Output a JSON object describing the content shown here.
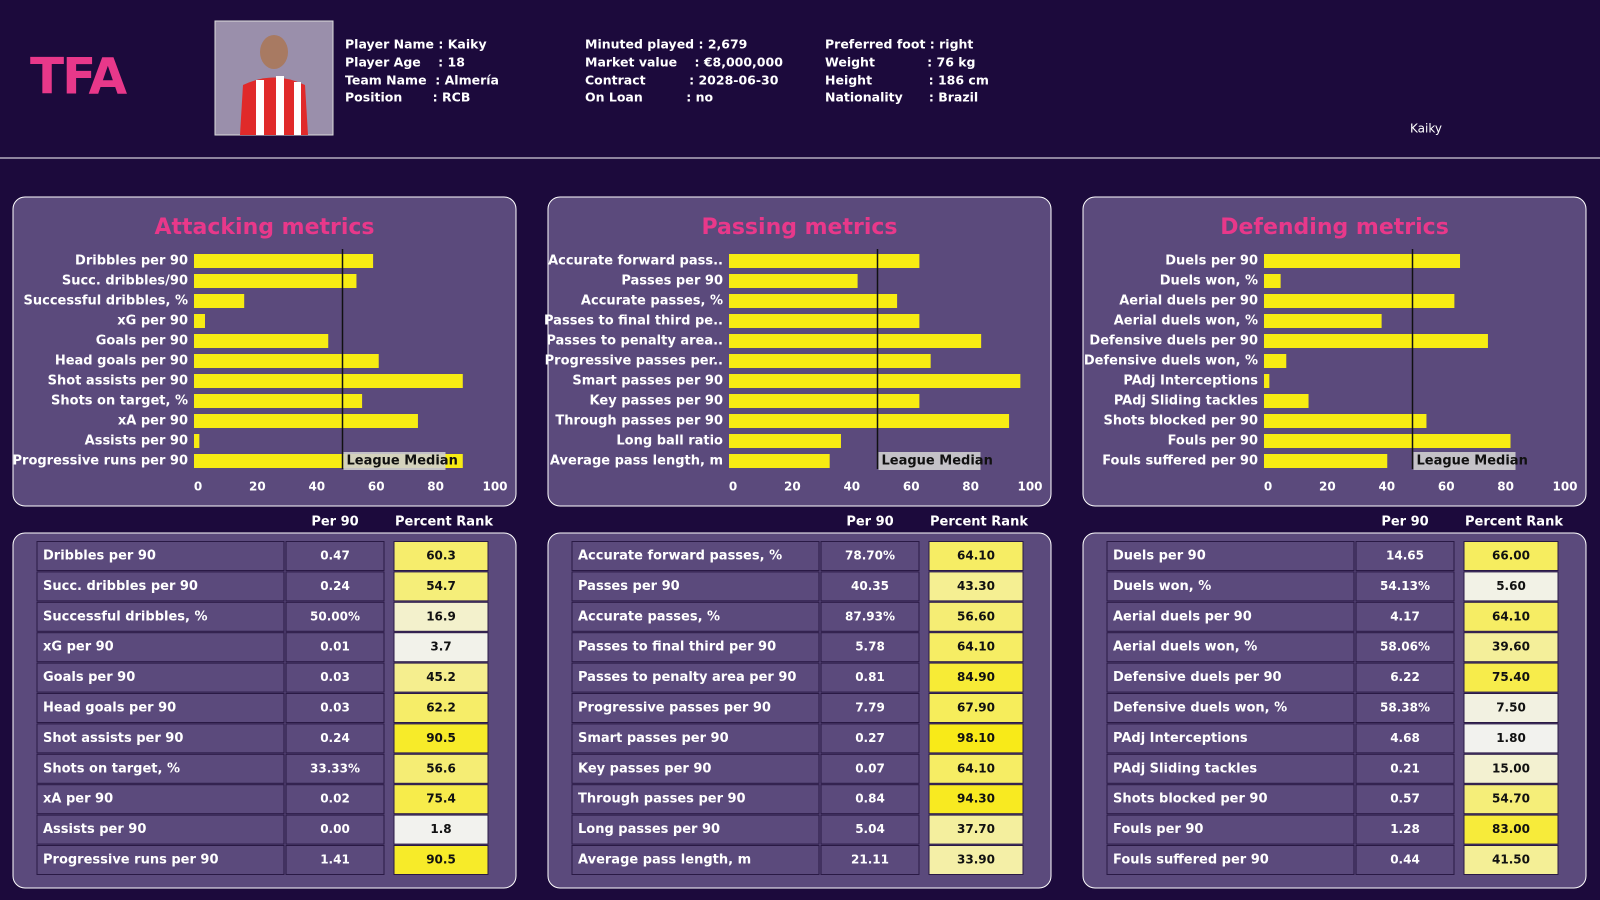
{
  "header": {
    "logo": "TFA",
    "info": [
      [
        "Player Name : Kaiky",
        "Player Age    : 18",
        "Team Name  : Almería",
        "Position       : RCB"
      ],
      [
        "Minuted played : 2,679",
        "Market value    : €8,000,000",
        "Contract          : 2028-06-30",
        "On Loan          : no"
      ],
      [
        "Preferred foot : right",
        "Weight            : 76 kg",
        "Height             : 186 cm",
        "Nationality      : Brazil"
      ]
    ],
    "player_label": "Kaiky"
  },
  "chart_data": [
    {
      "type": "bar",
      "orientation": "horizontal",
      "title": "Attacking metrics",
      "color": "#f7ec13",
      "categories": [
        "Dribbles per 90",
        "Succ. dribbles/90",
        "Successful dribbles, %",
        "xG per 90",
        "Goals per 90",
        "Head goals per 90",
        "Shot assists per 90",
        "Shots on target, %",
        "xA per 90",
        "Assists per 90",
        "Progressive runs per 90"
      ],
      "values": [
        60.3,
        54.7,
        16.9,
        3.7,
        45.2,
        62.2,
        90.5,
        56.6,
        75.4,
        1.8,
        90.5
      ],
      "xlim": [
        0,
        100
      ],
      "xticks": [
        0,
        20,
        40,
        60,
        80,
        100
      ],
      "median": 50,
      "median_label": "League Median"
    },
    {
      "type": "bar",
      "orientation": "horizontal",
      "title": "Passing metrics",
      "color": "#f7ec13",
      "categories": [
        "Accurate forward pass..",
        "Passes per 90",
        "Accurate passes, %",
        "Passes to final third pe..",
        "Passes to penalty area..",
        "Progressive passes per..",
        "Smart passes per 90",
        "Key passes per 90",
        "Through passes per 90",
        "Long ball ratio",
        "Average pass length, m"
      ],
      "values": [
        64.1,
        43.3,
        56.6,
        64.1,
        84.9,
        67.9,
        98.1,
        64.1,
        94.3,
        37.7,
        33.9
      ],
      "xlim": [
        0,
        100
      ],
      "xticks": [
        0,
        20,
        40,
        60,
        80,
        100
      ],
      "median": 50,
      "median_label": "League Median"
    },
    {
      "type": "bar",
      "orientation": "horizontal",
      "title": "Defending metrics",
      "color": "#f7ec13",
      "categories": [
        "Duels per 90",
        "Duels won, %",
        "Aerial duels per 90",
        "Aerial duels won, %",
        "Defensive duels per 90",
        "Defensive duels won, %",
        "PAdj Interceptions",
        "PAdj Sliding tackles",
        "Shots blocked per 90",
        "Fouls per 90",
        "Fouls suffered per 90"
      ],
      "values": [
        66.0,
        5.6,
        64.1,
        39.6,
        75.4,
        7.5,
        1.8,
        15.0,
        54.7,
        83.0,
        41.5
      ],
      "xlim": [
        0,
        100
      ],
      "xticks": [
        0,
        20,
        40,
        60,
        80,
        100
      ],
      "median": 50,
      "median_label": "League Median"
    }
  ],
  "tables": [
    {
      "columns": [
        "Per 90",
        "Percent Rank"
      ],
      "rows": [
        [
          "Dribbles per 90",
          "0.47",
          "60.3"
        ],
        [
          "Succ. dribbles per 90",
          "0.24",
          "54.7"
        ],
        [
          "Successful dribbles, %",
          "50.00%",
          "16.9"
        ],
        [
          "xG per 90",
          "0.01",
          "3.7"
        ],
        [
          "Goals per 90",
          "0.03",
          "45.2"
        ],
        [
          "Head goals per 90",
          "0.03",
          "62.2"
        ],
        [
          "Shot assists per 90",
          "0.24",
          "90.5"
        ],
        [
          "Shots on target, %",
          "33.33%",
          "56.6"
        ],
        [
          "xA per 90",
          "0.02",
          "75.4"
        ],
        [
          "Assists per 90",
          "0.00",
          "1.8"
        ],
        [
          "Progressive runs per 90",
          "1.41",
          "90.5"
        ]
      ]
    },
    {
      "columns": [
        "Per 90",
        "Percent Rank"
      ],
      "rows": [
        [
          "Accurate forward passes, %",
          "78.70%",
          "64.10"
        ],
        [
          "Passes per 90",
          "40.35",
          "43.30"
        ],
        [
          "Accurate passes, %",
          "87.93%",
          "56.60"
        ],
        [
          "Passes to final third per 90",
          "5.78",
          "64.10"
        ],
        [
          "Passes to penalty area per 90",
          "0.81",
          "84.90"
        ],
        [
          "Progressive passes per 90",
          "7.79",
          "67.90"
        ],
        [
          "Smart passes per 90",
          "0.27",
          "98.10"
        ],
        [
          "Key passes per 90",
          "0.07",
          "64.10"
        ],
        [
          "Through passes per 90",
          "0.84",
          "94.30"
        ],
        [
          "Long passes per 90",
          "5.04",
          "37.70"
        ],
        [
          "Average pass length, m",
          "21.11",
          "33.90"
        ]
      ]
    },
    {
      "columns": [
        "Per 90",
        "Percent Rank"
      ],
      "rows": [
        [
          "Duels per 90",
          "14.65",
          "66.00"
        ],
        [
          "Duels won, %",
          "54.13%",
          "5.60"
        ],
        [
          "Aerial duels per 90",
          "4.17",
          "64.10"
        ],
        [
          "Aerial duels won, %",
          "58.06%",
          "39.60"
        ],
        [
          "Defensive duels per 90",
          "6.22",
          "75.40"
        ],
        [
          "Defensive duels won, %",
          "58.38%",
          "7.50"
        ],
        [
          "PAdj Interceptions",
          "4.68",
          "1.80"
        ],
        [
          "PAdj Sliding tackles",
          "0.21",
          "15.00"
        ],
        [
          "Shots blocked per 90",
          "0.57",
          "54.70"
        ],
        [
          "Fouls per 90",
          "1.28",
          "83.00"
        ],
        [
          "Fouls suffered per 90",
          "0.44",
          "41.50"
        ]
      ]
    }
  ]
}
